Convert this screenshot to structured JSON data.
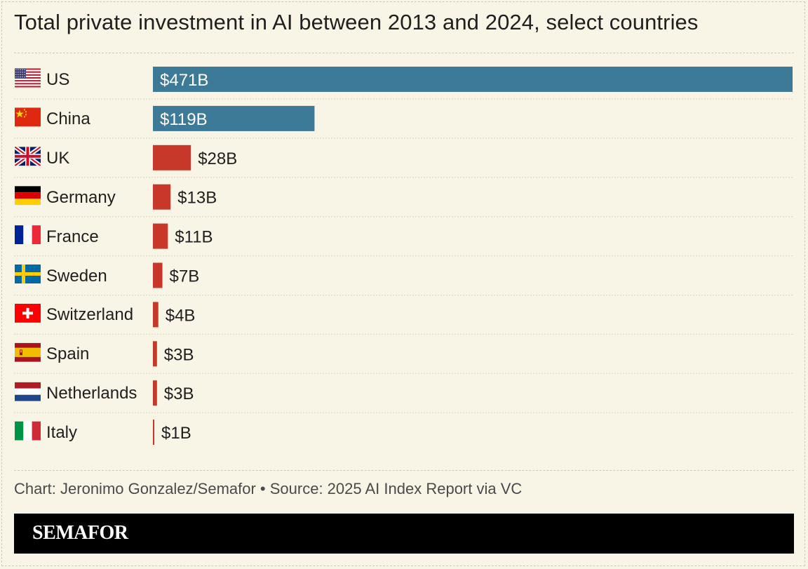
{
  "title": "Total private investment in AI between 2013 and 2024, select countries",
  "source": "Chart: Jeronimo Gonzalez/Semafor • Source: 2025 AI Index Report via VC",
  "brand": "SEMAFOR",
  "colors": {
    "highlight": "#3d7a98",
    "other": "#c8382a",
    "background": "#f8f5e6"
  },
  "chart_data": {
    "type": "bar",
    "orientation": "horizontal",
    "title": "Total private investment in AI between 2013 and 2024, select countries",
    "categories": [
      "US",
      "China",
      "UK",
      "Germany",
      "France",
      "Sweden",
      "Switzerland",
      "Spain",
      "Netherlands",
      "Italy"
    ],
    "values": [
      471,
      119,
      28,
      13,
      11,
      7,
      4,
      3,
      3,
      1
    ],
    "value_labels": [
      "$471B",
      "$119B",
      "$28B",
      "$13B",
      "$11B",
      "$7B",
      "$4B",
      "$3B",
      "$3B",
      "$1B"
    ],
    "flag_icons": [
      "us-flag-icon",
      "china-flag-icon",
      "uk-flag-icon",
      "germany-flag-icon",
      "france-flag-icon",
      "sweden-flag-icon",
      "switzerland-flag-icon",
      "spain-flag-icon",
      "netherlands-flag-icon",
      "italy-flag-icon"
    ],
    "highlighted": [
      "US",
      "China"
    ],
    "xlim": [
      0,
      471
    ],
    "grid": false
  }
}
